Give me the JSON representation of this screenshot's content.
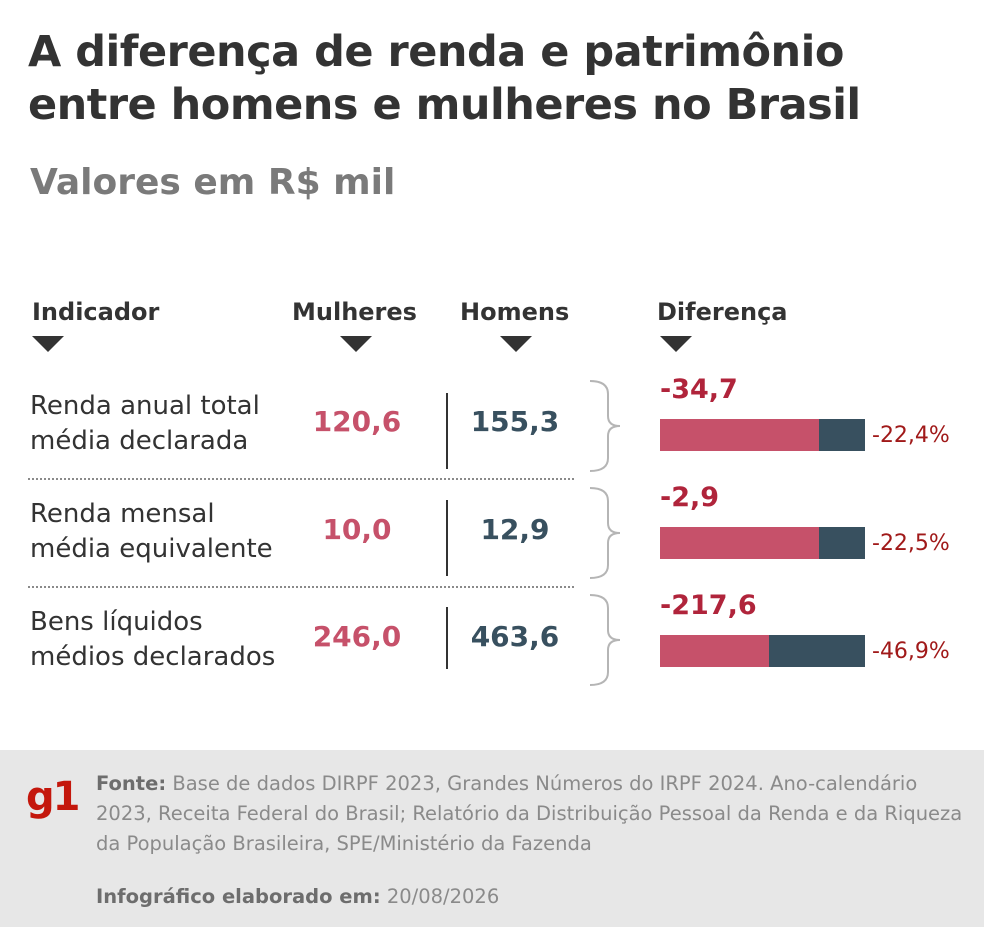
{
  "title": "A diferença de renda e patrimônio entre homens e mulheres no Brasil",
  "subtitle": "Valores em R$ mil",
  "columns": {
    "indicador": "Indicador",
    "mulheres": "Mulheres",
    "homens": "Homens",
    "diferenca": "Diferença"
  },
  "rows": [
    {
      "label_line1": "Renda anual total",
      "label_line2": "média declarada",
      "mulheres": "120,6",
      "homens": "155,3",
      "diferenca": "-34,7",
      "percent": "-22,4%"
    },
    {
      "label_line1": "Renda mensal",
      "label_line2": "média equivalente",
      "mulheres": "10,0",
      "homens": "12,9",
      "diferenca": "-2,9",
      "percent": "-22,5%"
    },
    {
      "label_line1": "Bens líquidos",
      "label_line2": "médios declarados",
      "mulheres": "246,0",
      "homens": "463,6",
      "diferenca": "-217,6",
      "percent": "-46,9%"
    }
  ],
  "chart_data": {
    "type": "bar",
    "categories": [
      "Renda anual total média declarada",
      "Renda mensal média equivalente",
      "Bens líquidos médios declarados"
    ],
    "series": [
      {
        "name": "Mulheres",
        "values": [
          120.6,
          10.0,
          246.0
        ]
      },
      {
        "name": "Homens",
        "values": [
          155.3,
          12.9,
          463.6
        ]
      }
    ],
    "difference": [
      -34.7,
      -2.9,
      -217.6
    ],
    "difference_percent": [
      -22.4,
      -22.5,
      -46.9
    ],
    "colors": {
      "mulheres": "#c6516a",
      "homens": "#38505f",
      "difference_text": "#b0243b"
    }
  },
  "footer": {
    "logo": "g1",
    "source_label": "Fonte:",
    "source_text": "Base de dados DIRPF 2023, Grandes Números do IRPF 2024. Ano-calendário 2023, Receita Federal do Brasil; Relatório da Distribuição Pessoal da Renda e da Riqueza da População Brasileira, SPE/Ministério da Fazenda",
    "made_label": "Infográfico elaborado em:",
    "made_date": "20/08/2026"
  }
}
